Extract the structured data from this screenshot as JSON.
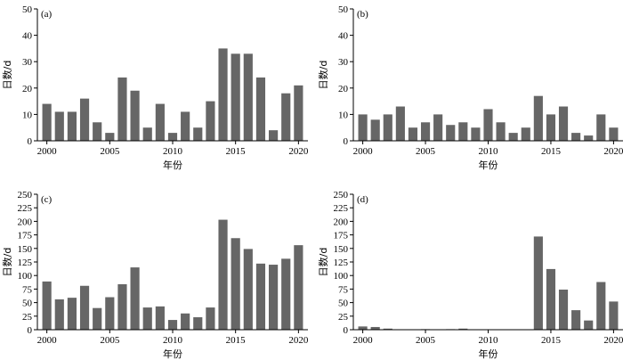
{
  "chart_data": [
    {
      "type": "bar",
      "panel_label": "(a)",
      "xlabel": "年份",
      "ylabel": "日数/d",
      "ylim": [
        0,
        50
      ],
      "yticks": [
        0,
        10,
        20,
        30,
        40,
        50
      ],
      "xticks": [
        2000,
        2005,
        2010,
        2015,
        2020
      ],
      "x": [
        2000,
        2001,
        2002,
        2003,
        2004,
        2005,
        2006,
        2007,
        2008,
        2009,
        2010,
        2011,
        2012,
        2013,
        2014,
        2015,
        2016,
        2017,
        2018,
        2019,
        2020
      ],
      "values": [
        14,
        11,
        11,
        16,
        7,
        3,
        24,
        19,
        5,
        14,
        3,
        11,
        5,
        15,
        35,
        33,
        33,
        24,
        4,
        18,
        21
      ],
      "bar_color": "#666666",
      "grid": false
    },
    {
      "type": "bar",
      "panel_label": "(b)",
      "xlabel": "年份",
      "ylabel": "日数/d",
      "ylim": [
        0,
        50
      ],
      "yticks": [
        0,
        10,
        20,
        30,
        40,
        50
      ],
      "xticks": [
        2000,
        2005,
        2010,
        2015,
        2020
      ],
      "x": [
        2000,
        2001,
        2002,
        2003,
        2004,
        2005,
        2006,
        2007,
        2008,
        2009,
        2010,
        2011,
        2012,
        2013,
        2014,
        2015,
        2016,
        2017,
        2018,
        2019,
        2020
      ],
      "values": [
        10,
        8,
        10,
        13,
        5,
        7,
        10,
        6,
        7,
        5,
        12,
        7,
        3,
        5,
        17,
        10,
        13,
        3,
        2,
        10,
        5
      ],
      "bar_color": "#666666",
      "grid": false
    },
    {
      "type": "bar",
      "panel_label": "(c)",
      "xlabel": "年份",
      "ylabel": "日数/d",
      "ylim": [
        0,
        250
      ],
      "yticks": [
        0,
        25,
        50,
        75,
        100,
        125,
        150,
        175,
        200,
        225,
        250
      ],
      "xticks": [
        2000,
        2005,
        2010,
        2015,
        2020
      ],
      "x": [
        2000,
        2001,
        2002,
        2003,
        2004,
        2005,
        2006,
        2007,
        2008,
        2009,
        2010,
        2011,
        2012,
        2013,
        2014,
        2015,
        2016,
        2017,
        2018,
        2019,
        2020
      ],
      "values": [
        89,
        56,
        59,
        81,
        40,
        60,
        84,
        115,
        41,
        43,
        18,
        30,
        23,
        41,
        203,
        169,
        149,
        122,
        120,
        131,
        156
      ],
      "bar_color": "#666666",
      "grid": false
    },
    {
      "type": "bar",
      "panel_label": "(d)",
      "xlabel": "年份",
      "ylabel": "日数/d",
      "ylim": [
        0,
        250
      ],
      "yticks": [
        0,
        25,
        50,
        75,
        100,
        125,
        150,
        175,
        200,
        225,
        250
      ],
      "xticks": [
        2000,
        2005,
        2010,
        2015,
        2020
      ],
      "x": [
        2000,
        2001,
        2002,
        2003,
        2004,
        2005,
        2006,
        2007,
        2008,
        2009,
        2010,
        2011,
        2012,
        2013,
        2014,
        2015,
        2016,
        2017,
        2018,
        2019,
        2020
      ],
      "values": [
        6,
        5,
        2,
        0,
        0,
        1,
        0,
        1,
        2,
        0,
        0,
        0,
        0,
        0,
        172,
        112,
        74,
        36,
        17,
        88,
        52
      ],
      "bar_color": "#666666",
      "grid": false
    }
  ]
}
